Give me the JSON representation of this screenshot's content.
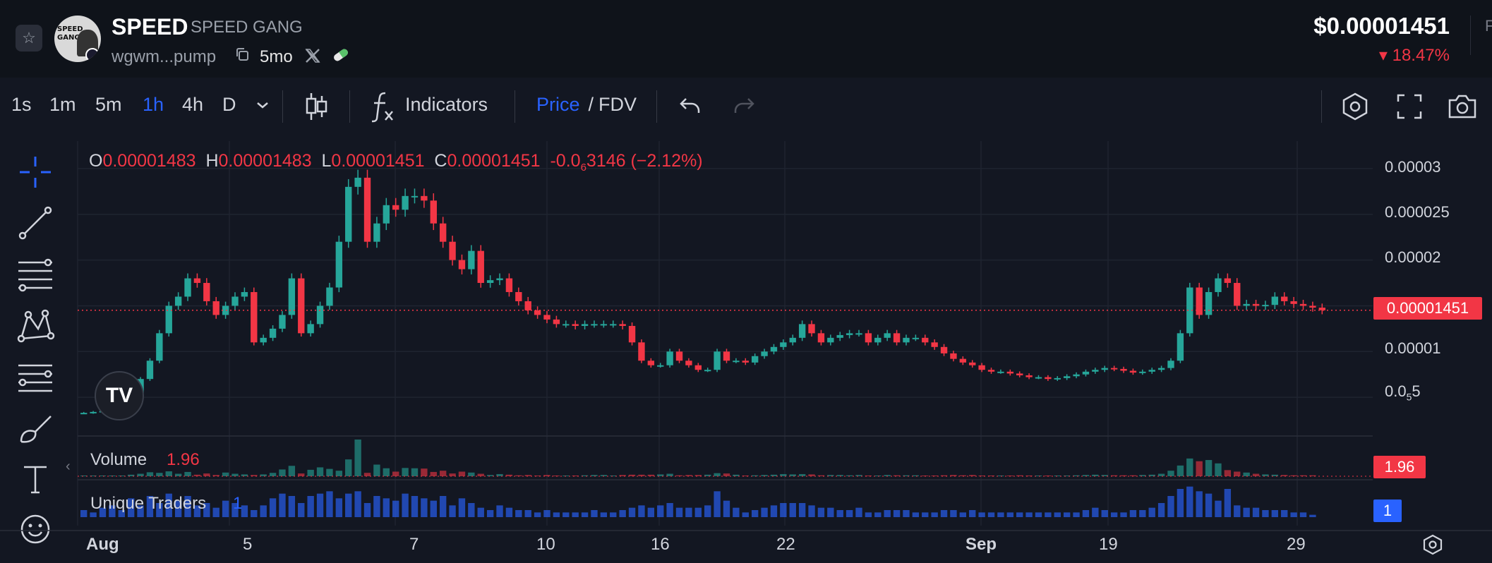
{
  "header": {
    "symbol": "SPEED",
    "name": "SPEED GANG",
    "address": "wgwm...pump",
    "age": "5mo",
    "price": "$0.00001451",
    "change": "▾ 18.47%",
    "edge_text": "F",
    "avatar_text": "SPEED GANG"
  },
  "toolbar": {
    "timeframes": [
      "1s",
      "1m",
      "5m",
      "1h",
      "4h",
      "D"
    ],
    "active_timeframe": "1h",
    "indicators_label": "Indicators",
    "price_label": "Price",
    "slash": " / ",
    "fdv_label": "FDV"
  },
  "ohlc": {
    "o_label": "O",
    "o": "0.00001483",
    "h_label": "H",
    "h": "0.00001483",
    "l_label": "L",
    "l": "0.00001451",
    "c_label": "C",
    "c": "0.00001451",
    "chg_pre": "-0.0",
    "chg_sub": "6",
    "chg_post": "3146 (−2.12%)"
  },
  "price_axis": {
    "ticks": [
      "0.00003",
      "0.000025",
      "0.00002",
      "0.00001"
    ],
    "tick_small_main": "0.0",
    "tick_small_sub": "5",
    "tick_small_post": "5",
    "current": "0.00001451"
  },
  "volume": {
    "label": "Volume",
    "value": "1.96",
    "tag": "1.96"
  },
  "traders": {
    "label": "Unique Traders",
    "value": "1",
    "tag": "1"
  },
  "time_axis": [
    "Aug",
    "5",
    "7",
    "10",
    "16",
    "22",
    "Sep",
    "19",
    "29"
  ],
  "colors": {
    "up": "#26a69a",
    "down": "#f23645",
    "accent": "#2962ff",
    "bg": "#131722"
  },
  "icons": [
    "star-icon",
    "copy-icon",
    "x-icon",
    "pill-icon",
    "candles-icon",
    "fx-icon",
    "undo-icon",
    "redo-icon",
    "settings-icon",
    "fullscreen-icon",
    "camera-icon",
    "crosshair-icon",
    "trendline-icon",
    "fib-icon",
    "pattern-icon",
    "measure-icon",
    "brush-icon",
    "text-icon",
    "emoji-icon",
    "tradingview-icon",
    "chart-settings-icon"
  ],
  "chart_data": {
    "type": "candlestick",
    "price_ylim": [
      1e-06,
      3.3e-05
    ],
    "closes": [
      3.3e-06,
      3.4e-06,
      3.5e-06,
      3.6e-06,
      3.8e-06,
      5.5e-06,
      7e-06,
      9e-06,
      1.2e-05,
      1.5e-05,
      1.6e-05,
      1.8e-05,
      1.75e-05,
      1.55e-05,
      1.4e-05,
      1.5e-05,
      1.6e-05,
      1.65e-05,
      1.1e-05,
      1.15e-05,
      1.25e-05,
      1.4e-05,
      1.8e-05,
      1.2e-05,
      1.3e-05,
      1.5e-05,
      1.7e-05,
      2.2e-05,
      2.8e-05,
      2.9e-05,
      2.2e-05,
      2.4e-05,
      2.6e-05,
      2.55e-05,
      2.7e-05,
      2.7e-05,
      2.65e-05,
      2.4e-05,
      2.2e-05,
      2e-05,
      1.9e-05,
      2.1e-05,
      1.75e-05,
      1.78e-05,
      1.8e-05,
      1.65e-05,
      1.55e-05,
      1.45e-05,
      1.4e-05,
      1.35e-05,
      1.3e-05,
      1.3e-05,
      1.28e-05,
      1.3e-05,
      1.3e-05,
      1.3e-05,
      1.3e-05,
      1.28e-05,
      1.1e-05,
      9e-06,
      8.5e-06,
      8.5e-06,
      1e-05,
      9e-06,
      8.5e-06,
      8e-06,
      8e-06,
      1e-05,
      9e-06,
      9e-06,
      8.8e-06,
      9.5e-06,
      1e-05,
      1.05e-05,
      1.1e-05,
      1.15e-05,
      1.3e-05,
      1.2e-05,
      1.1e-05,
      1.15e-05,
      1.18e-05,
      1.2e-05,
      1.2e-05,
      1.1e-05,
      1.15e-05,
      1.2e-05,
      1.1e-05,
      1.15e-05,
      1.15e-05,
      1.1e-05,
      1.05e-05,
      9.8e-06,
      9.2e-06,
      8.8e-06,
      8.5e-06,
      8e-06,
      7.8e-06,
      7.8e-06,
      7.6e-06,
      7.4e-06,
      7.2e-06,
      7.2e-06,
      7e-06,
      7.1e-06,
      7.3e-06,
      7.5e-06,
      7.8e-06,
      8e-06,
      8.2e-06,
      8.1e-06,
      7.9e-06,
      7.7e-06,
      7.8e-06,
      8e-06,
      8.2e-06,
      9e-06,
      1.2e-05,
      1.7e-05,
      1.4e-05,
      1.65e-05,
      1.8e-05,
      1.75e-05,
      1.5e-05,
      1.52e-05,
      1.5e-05,
      1.51e-05,
      1.6e-05,
      1.55e-05,
      1.52e-05,
      1.5e-05,
      1.48e-05,
      1.451e-05
    ],
    "volume_max": 12,
    "volume": [
      0,
      0,
      0,
      0,
      0.2,
      0.5,
      0.8,
      1.3,
      1.1,
      1.6,
      0.8,
      1.4,
      0.5,
      0.9,
      0.4,
      1.2,
      0.8,
      0.6,
      0.4,
      0.6,
      1.1,
      2.2,
      3.4,
      0.9,
      2.1,
      2.9,
      2.4,
      1.8,
      5.5,
      12,
      1.1,
      3.8,
      2.6,
      1.5,
      2.7,
      2.6,
      2.5,
      1.4,
      1.8,
      0.9,
      1.5,
      1.2,
      0.8,
      0.4,
      0.7,
      0.5,
      0.3,
      0.4,
      0.2,
      0.4,
      0.2,
      0.2,
      0.1,
      0.3,
      0.4,
      0.4,
      0.2,
      0.4,
      0.5,
      0.5,
      0.5,
      0.6,
      0.8,
      0.3,
      0.4,
      0.4,
      0.5,
      1.0,
      0.9,
      0.5,
      0.2,
      0.3,
      0.4,
      0.5,
      0.7,
      0.6,
      0.7,
      0.6,
      0.3,
      0.4,
      0.4,
      0.3,
      0.4,
      0.2,
      0.2,
      0.4,
      0.3,
      0.3,
      0.3,
      0.2,
      0.2,
      0.3,
      0.4,
      0.3,
      0.4,
      0.2,
      0.2,
      0.2,
      0.2,
      0.3,
      0.1,
      0.2,
      0.2,
      0.2,
      0.2,
      0.3,
      0.4,
      0.5,
      0.4,
      0.3,
      0.3,
      0.3,
      0.4,
      0.5,
      0.8,
      1.8,
      3.5,
      5.8,
      4.9,
      5.3,
      4.2,
      2.0,
      1.5,
      1.2,
      0.8,
      0.6,
      0.5,
      0.4,
      0.3,
      0.3,
      0.3
    ],
    "traders": [
      0.3,
      0.2,
      0.4,
      0.5,
      0.3,
      0.8,
      0.5,
      0.9,
      0.6,
      1.0,
      0.7,
      0.9,
      0.5,
      0.6,
      0.4,
      0.7,
      0.6,
      0.5,
      0.3,
      0.5,
      0.8,
      1.0,
      0.9,
      0.6,
      0.9,
      1.0,
      1.1,
      0.8,
      1.0,
      1.1,
      0.6,
      0.9,
      0.8,
      0.7,
      1.0,
      0.9,
      0.8,
      0.7,
      0.9,
      0.5,
      0.8,
      0.6,
      0.4,
      0.3,
      0.5,
      0.4,
      0.3,
      0.3,
      0.2,
      0.3,
      0.2,
      0.2,
      0.2,
      0.2,
      0.3,
      0.2,
      0.2,
      0.3,
      0.4,
      0.5,
      0.4,
      0.5,
      0.6,
      0.4,
      0.4,
      0.4,
      0.5,
      1.1,
      0.7,
      0.4,
      0.2,
      0.3,
      0.4,
      0.5,
      0.6,
      0.6,
      0.6,
      0.5,
      0.4,
      0.4,
      0.3,
      0.3,
      0.4,
      0.2,
      0.2,
      0.3,
      0.3,
      0.3,
      0.2,
      0.2,
      0.2,
      0.3,
      0.3,
      0.2,
      0.3,
      0.2,
      0.2,
      0.2,
      0.2,
      0.2,
      0.2,
      0.2,
      0.2,
      0.2,
      0.2,
      0.2,
      0.3,
      0.4,
      0.3,
      0.2,
      0.2,
      0.3,
      0.3,
      0.4,
      0.6,
      0.9,
      1.2,
      1.3,
      1.1,
      1.0,
      0.7,
      1.2,
      0.5,
      0.4,
      0.4,
      0.3,
      0.3,
      0.3,
      0.2,
      0.2,
      0.1
    ]
  }
}
